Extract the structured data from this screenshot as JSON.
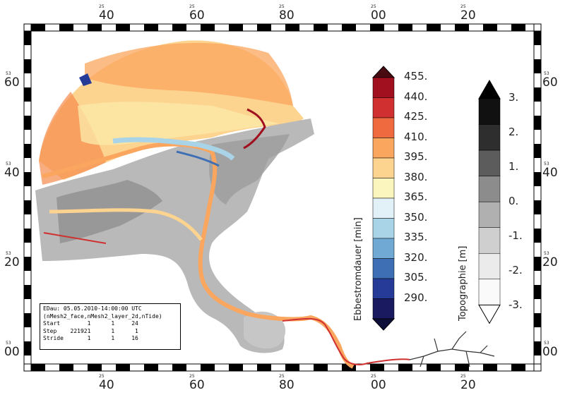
{
  "map": {
    "title": "",
    "frame": {
      "top_major_labels": [
        "40",
        "60",
        "80",
        "00",
        "20"
      ],
      "top_minor_labels": [
        "25",
        "25",
        "25",
        "25",
        "25"
      ],
      "bottom_major_labels": [
        "40",
        "60",
        "80",
        "00",
        "20"
      ],
      "bottom_minor_labels": [
        "25",
        "25",
        "25",
        "25",
        "25"
      ],
      "left_major_labels": [
        "60",
        "40",
        "20",
        "00"
      ],
      "left_minor_labels": [
        "53",
        "53",
        "53",
        "53"
      ],
      "right_major_labels": [
        "60",
        "40",
        "20",
        "00"
      ],
      "right_minor_labels": [
        "53",
        "53",
        "53",
        "53"
      ]
    }
  },
  "colorbar_ebb": {
    "title": "Ebbestromdauer [min]",
    "labels": [
      "455.",
      "440.",
      "425.",
      "410.",
      "395.",
      "380.",
      "365.",
      "350.",
      "335.",
      "320.",
      "305.",
      "290."
    ],
    "colors": [
      "#a0101e",
      "#d03030",
      "#f06a40",
      "#fba65e",
      "#fdd390",
      "#fbf6bd",
      "#e2f1f7",
      "#a9d4e8",
      "#6fa9d4",
      "#3e6fb4",
      "#263a97",
      "#1a1a60"
    ]
  },
  "colorbar_topo": {
    "title": "Topographie [m]",
    "labels": [
      "3.",
      "2.",
      "1.",
      "0.",
      "-1.",
      "-2.",
      "-3."
    ],
    "colors": [
      "#111111",
      "#2e2e2e",
      "#5c5c5c",
      "#8c8c8c",
      "#b0b0b0",
      "#cfcfcf",
      "#ebebeb",
      "#fafafa"
    ]
  },
  "info": {
    "line1": "EDau: 05.05.2010-14:00:00 UTC",
    "line2": "(nMesh2_face,nMesh2_layer_2d,nTide)",
    "rows": [
      {
        "name": "Start",
        "a": "1",
        "b": "1",
        "c": "24"
      },
      {
        "name": "Step",
        "a": "221921",
        "b": "1",
        "c": "1"
      },
      {
        "name": "Stride",
        "a": "1",
        "b": "1",
        "c": "16"
      }
    ]
  }
}
